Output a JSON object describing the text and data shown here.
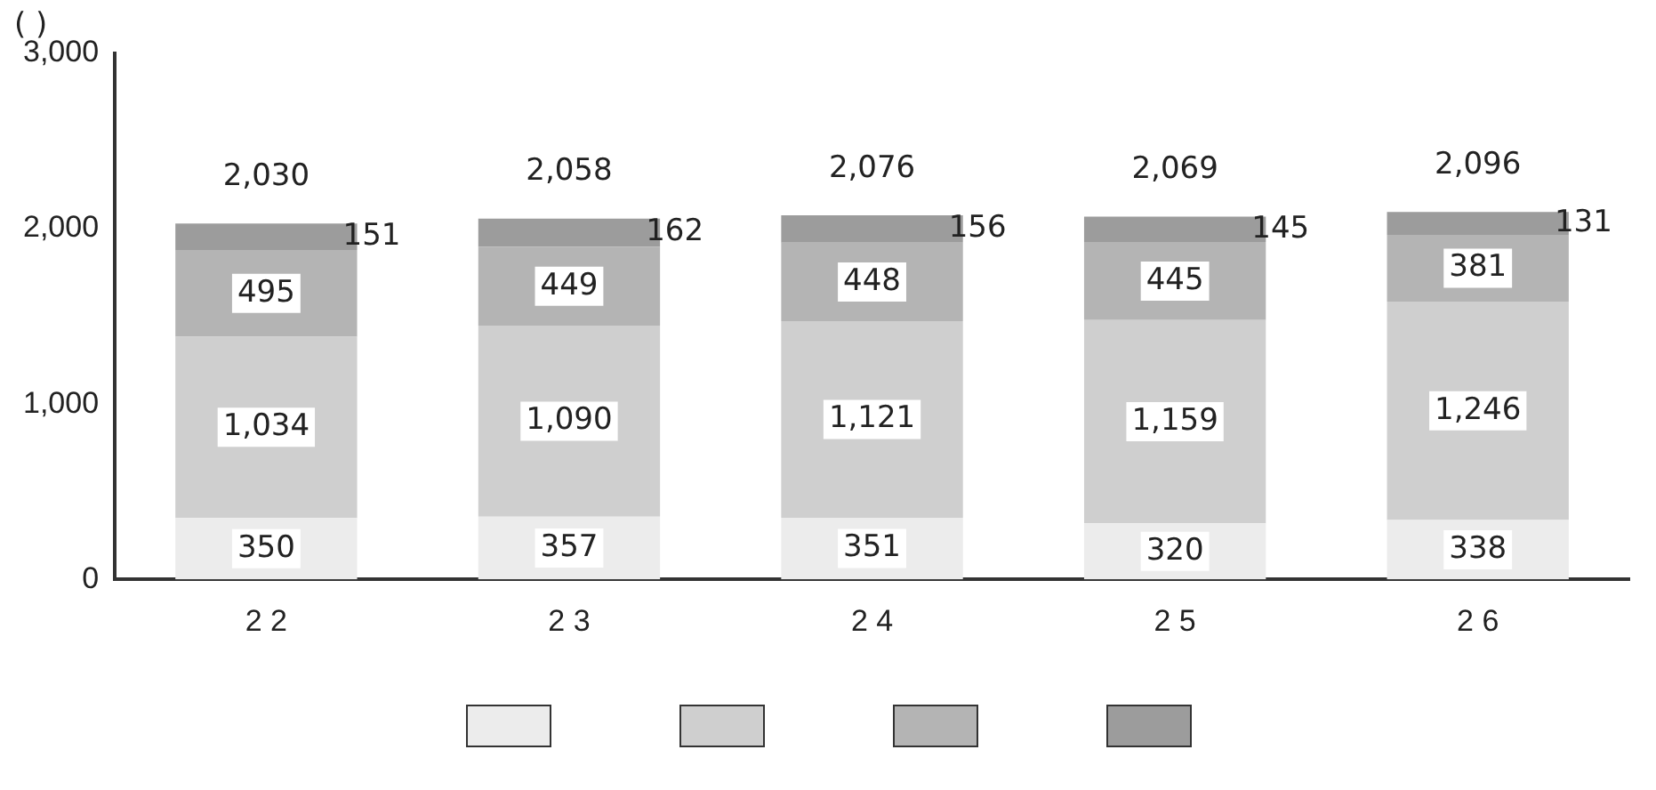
{
  "chart_data": {
    "type": "bar",
    "stacked": true,
    "ylabel": "( )",
    "categories": [
      "2 2",
      "2 3",
      "2 4",
      "2 5",
      "2 6"
    ],
    "series": [
      {
        "color": "#ececec",
        "values": [
          350,
          357,
          351,
          320,
          338
        ],
        "value_labels": [
          "350",
          "357",
          "351",
          "320",
          "338"
        ]
      },
      {
        "color": "#cfcfcf",
        "values": [
          1034,
          1090,
          1121,
          1159,
          1246
        ],
        "value_labels": [
          "1,034",
          "1,090",
          "1,121",
          "1,159",
          "1,246"
        ]
      },
      {
        "color": "#b4b4b4",
        "values": [
          495,
          449,
          448,
          445,
          381
        ],
        "value_labels": [
          "495",
          "449",
          "448",
          "445",
          "381"
        ]
      },
      {
        "color": "#9c9c9c",
        "values": [
          151,
          162,
          156,
          145,
          131
        ],
        "value_labels": [
          "151",
          "162",
          "156",
          "145",
          "131"
        ]
      }
    ],
    "totals": [
      "2,030",
      "2,058",
      "2,076",
      "2,069",
      "2,096"
    ],
    "grid": false,
    "ylim": [
      0,
      3000
    ],
    "yticks": [
      {
        "value": 0,
        "label": "0"
      },
      {
        "value": 1000,
        "label": "1,000"
      },
      {
        "value": 2000,
        "label": "2,000"
      },
      {
        "value": 3000,
        "label": "3,000"
      }
    ]
  }
}
